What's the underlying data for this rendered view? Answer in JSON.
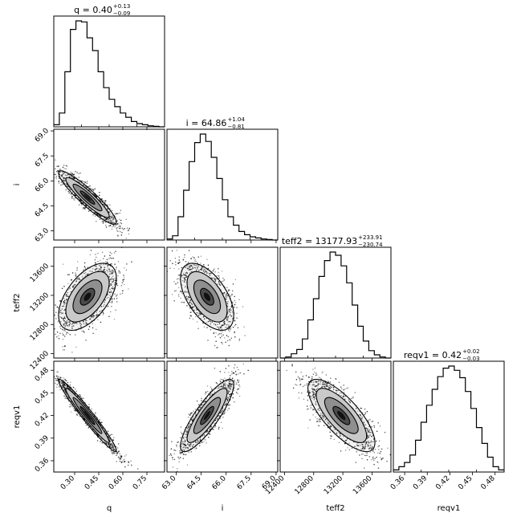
{
  "chart_data": {
    "type": "corner",
    "parameters": [
      {
        "name": "q",
        "axis_label": "q",
        "range": [
          0.17,
          0.86
        ],
        "ticks": [
          "0.30",
          "0.45",
          "0.60",
          "0.75"
        ],
        "tick_values": [
          0.3,
          0.45,
          0.6,
          0.75
        ],
        "title_prefix": "q = 0.40",
        "title_plus": "+0.13",
        "title_minus": "−0.09"
      },
      {
        "name": "i",
        "axis_label": "i",
        "range": [
          62.45,
          69.1
        ],
        "ticks": [
          "63.0",
          "64.5",
          "66.0",
          "67.5",
          "69.0"
        ],
        "tick_values": [
          63.0,
          64.5,
          66.0,
          67.5,
          69.0
        ],
        "title_prefix": "i = 64.86",
        "title_plus": "+1.04",
        "title_minus": "−0.81"
      },
      {
        "name": "teff2",
        "axis_label": "teff2",
        "range": [
          12340,
          13860
        ],
        "ticks": [
          "12400",
          "12800",
          "13200",
          "13600"
        ],
        "tick_values": [
          12400,
          12800,
          13200,
          13600
        ],
        "title_prefix": "teff2 = 13177.93",
        "title_plus": "+233.91",
        "title_minus": "−230.74"
      },
      {
        "name": "reqv1",
        "axis_label": "reqv1",
        "range": [
          0.345,
          0.492
        ],
        "ticks": [
          "0.36",
          "0.39",
          "0.42",
          "0.45",
          "0.48"
        ],
        "tick_values": [
          0.36,
          0.39,
          0.42,
          0.45,
          0.48
        ],
        "title_prefix": "reqv1 = 0.42",
        "title_plus": "+0.02",
        "title_minus": "−0.03"
      }
    ],
    "y_axis_labels": {
      "1": "i",
      "2": "teff2",
      "3": "reqv1"
    },
    "histograms": [
      [
        0.02,
        0.13,
        0.52,
        0.92,
        1.0,
        0.99,
        0.84,
        0.72,
        0.52,
        0.37,
        0.26,
        0.19,
        0.13,
        0.09,
        0.05,
        0.03,
        0.02,
        0.01,
        0.005,
        0.0
      ],
      [
        0.01,
        0.04,
        0.22,
        0.47,
        0.74,
        0.92,
        1.0,
        0.93,
        0.78,
        0.58,
        0.38,
        0.22,
        0.14,
        0.08,
        0.05,
        0.03,
        0.02,
        0.01,
        0.005,
        0.0
      ],
      [
        0.0,
        0.01,
        0.04,
        0.08,
        0.18,
        0.36,
        0.56,
        0.77,
        0.92,
        1.0,
        0.97,
        0.87,
        0.71,
        0.5,
        0.3,
        0.16,
        0.07,
        0.03,
        0.01,
        0.0
      ],
      [
        0.02,
        0.05,
        0.09,
        0.16,
        0.3,
        0.47,
        0.63,
        0.78,
        0.9,
        0.98,
        1.0,
        0.96,
        0.89,
        0.76,
        0.6,
        0.42,
        0.27,
        0.14,
        0.05,
        0.02
      ]
    ],
    "pair_distributions": [
      {
        "row": 1,
        "col": 0,
        "center": [
          0.38,
          65.0
        ],
        "sigma": [
          0.09,
          0.8
        ],
        "corr": -0.92
      },
      {
        "row": 2,
        "col": 0,
        "center": [
          0.38,
          13180
        ],
        "sigma": [
          0.09,
          230
        ],
        "corr": 0.55
      },
      {
        "row": 2,
        "col": 1,
        "center": [
          64.86,
          13180
        ],
        "sigma": [
          0.8,
          230
        ],
        "corr": -0.55
      },
      {
        "row": 3,
        "col": 0,
        "center": [
          0.38,
          0.42
        ],
        "sigma": [
          0.09,
          0.024
        ],
        "corr": -0.97
      },
      {
        "row": 3,
        "col": 1,
        "center": [
          64.86,
          0.42
        ],
        "sigma": [
          0.8,
          0.024
        ],
        "corr": 0.85
      },
      {
        "row": 3,
        "col": 2,
        "center": [
          13180,
          0.42
        ],
        "sigma": [
          230,
          0.024
        ],
        "corr": -0.75
      }
    ],
    "contour_levels_sigma": [
      0.5,
      1.0,
      1.5,
      2.0
    ],
    "colors": {
      "frame": "#000000",
      "points": "#000000",
      "fill_dark": "#3a3a3a",
      "fill_light": "#e8e8e8",
      "background": "#ffffff"
    }
  }
}
